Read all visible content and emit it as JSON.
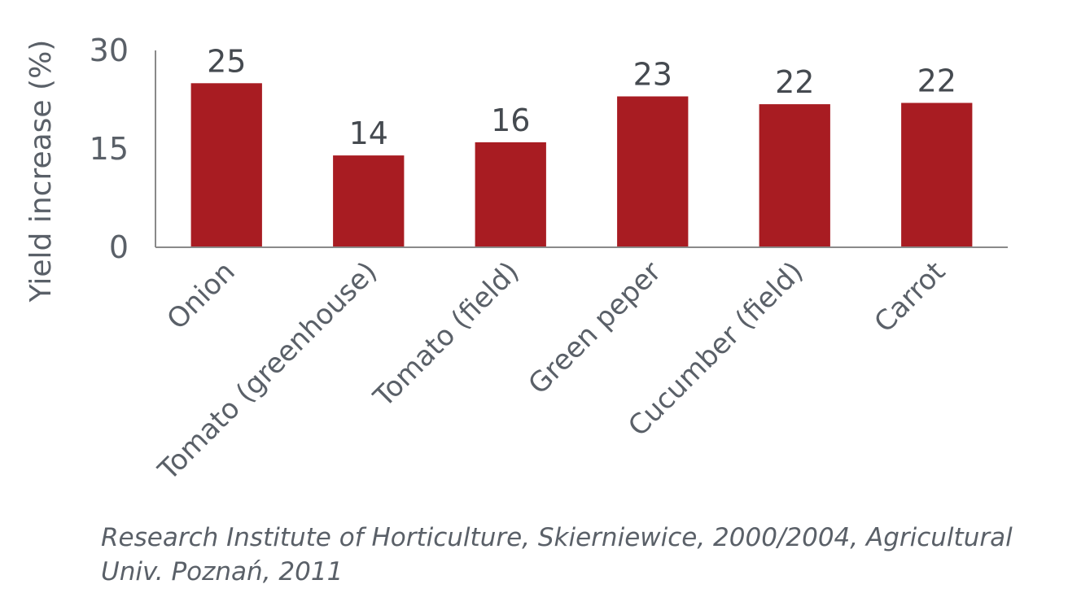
{
  "chart_data": {
    "type": "bar",
    "title": "",
    "xlabel": "",
    "ylabel": "Yield increase (%)",
    "ylim": [
      0,
      30
    ],
    "yticks": [
      0,
      15,
      30
    ],
    "categories": [
      "Onion",
      "Tomato (greenhouse)",
      "Tomato (field)",
      "Green peper",
      "Cucumber (field)",
      "Carrot"
    ],
    "values": [
      25,
      14,
      16,
      23,
      21.8,
      22
    ],
    "data_labels": [
      "25",
      "14",
      "16",
      "23",
      "22",
      "22"
    ],
    "bar_color": "#a81c22",
    "axis_color": "#8a8a8a",
    "grid": false,
    "legend": "none"
  },
  "source_text": "Research Institute of Horticulture, Skierniewice, 2000/2004, Agricultural Univ. Poznań, 2011"
}
